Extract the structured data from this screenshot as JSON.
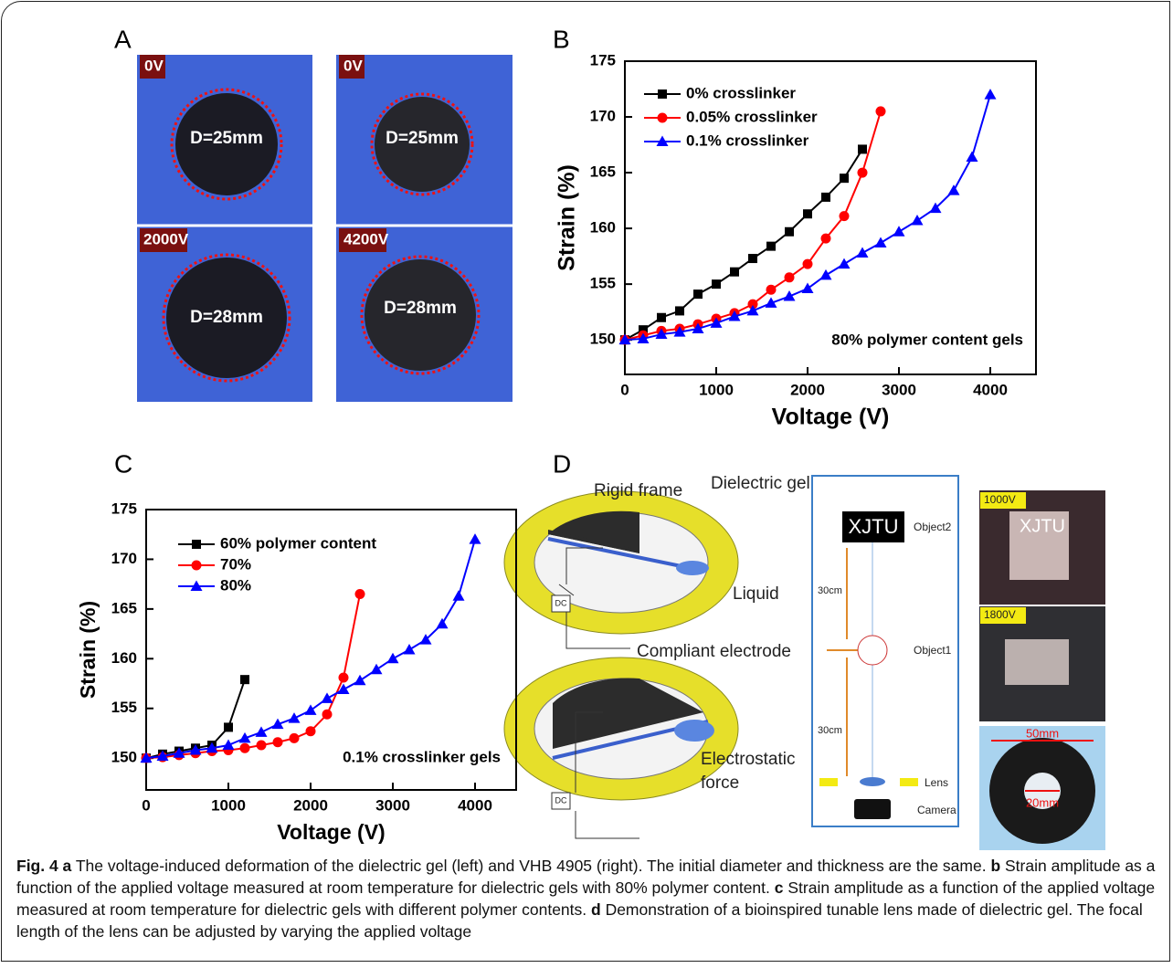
{
  "panel_labels": [
    "A",
    "B",
    "C",
    "D"
  ],
  "panel_a": {
    "labels": [
      "0V",
      "D=25mm",
      "2000V",
      "D=28mm",
      "0V",
      "D=25mm",
      "4200V",
      "D=28mm"
    ]
  },
  "chart_data": [
    {
      "type": "line",
      "x_label": "Voltage (V)",
      "y_label": "Strain (%)",
      "annotation": "80% polymer content gels",
      "xlim": [
        0,
        4500
      ],
      "ylim": [
        146.9,
        175
      ],
      "xticks": [
        0,
        1000,
        2000,
        3000,
        4000
      ],
      "yticks": [
        150,
        155,
        160,
        165,
        170,
        175
      ],
      "series": [
        {
          "name": "0% crosslinker",
          "color": "#000000",
          "marker": "square",
          "x": [
            0,
            200,
            400,
            600,
            800,
            1000,
            1200,
            1400,
            1600,
            1800,
            2000,
            2200,
            2400,
            2600
          ],
          "values": [
            150,
            150.9,
            152.0,
            152.6,
            154.1,
            155.0,
            156.1,
            157.3,
            158.4,
            159.7,
            161.3,
            162.8,
            164.5,
            167.1
          ]
        },
        {
          "name": "0.05% crosslinker",
          "color": "#ff0000",
          "marker": "circle",
          "x": [
            0,
            200,
            400,
            600,
            800,
            1000,
            1200,
            1400,
            1600,
            1800,
            2000,
            2200,
            2400,
            2600,
            2800
          ],
          "values": [
            150,
            150.4,
            150.8,
            151.0,
            151.4,
            151.9,
            152.4,
            153.2,
            154.5,
            155.6,
            156.8,
            159.1,
            161.1,
            165.0,
            170.5
          ]
        },
        {
          "name": "0.1% crosslinker",
          "color": "#0000ff",
          "marker": "triangle",
          "x": [
            0,
            200,
            400,
            600,
            800,
            1000,
            1200,
            1400,
            1600,
            1800,
            2000,
            2200,
            2400,
            2600,
            2800,
            3000,
            3200,
            3400,
            3600,
            3800,
            4000
          ],
          "values": [
            150,
            150.1,
            150.5,
            150.7,
            151.0,
            151.5,
            152.1,
            152.6,
            153.3,
            153.9,
            154.6,
            155.8,
            156.8,
            157.8,
            158.7,
            159.7,
            160.7,
            161.8,
            163.4,
            166.4,
            172.0
          ]
        }
      ]
    },
    {
      "type": "line",
      "x_label": "Voltage (V)",
      "y_label": "Strain (%)",
      "annotation": "0.1% crosslinker gels",
      "xlim": [
        0,
        4500
      ],
      "ylim": [
        146.8,
        175
      ],
      "xticks": [
        0,
        1000,
        2000,
        3000,
        4000
      ],
      "yticks": [
        150,
        155,
        160,
        165,
        170,
        175
      ],
      "series": [
        {
          "name": "60% polymer content",
          "color": "#000000",
          "marker": "square",
          "x": [
            0,
            200,
            400,
            600,
            800,
            1000,
            1200
          ],
          "values": [
            150,
            150.4,
            150.7,
            151.0,
            151.3,
            153.1,
            157.9
          ]
        },
        {
          "name": "70%",
          "color": "#ff0000",
          "marker": "circle",
          "x": [
            0,
            200,
            400,
            600,
            800,
            1000,
            1200,
            1400,
            1600,
            1800,
            2000,
            2200,
            2400,
            2600
          ],
          "values": [
            150,
            150.1,
            150.3,
            150.5,
            150.7,
            150.8,
            151.0,
            151.3,
            151.6,
            152.0,
            152.7,
            154.4,
            158.1,
            166.5
          ]
        },
        {
          "name": "80%",
          "color": "#0000ff",
          "marker": "triangle",
          "x": [
            0,
            200,
            400,
            600,
            800,
            1000,
            1200,
            1400,
            1600,
            1800,
            2000,
            2200,
            2400,
            2600,
            2800,
            3000,
            3200,
            3400,
            3600,
            3800,
            4000
          ],
          "values": [
            150,
            150.2,
            150.5,
            150.8,
            151.0,
            151.3,
            152.0,
            152.6,
            153.4,
            154.0,
            154.8,
            156.0,
            156.9,
            157.8,
            158.9,
            160.0,
            160.9,
            161.9,
            163.5,
            166.3,
            172.0
          ]
        }
      ]
    }
  ],
  "panel_d": {
    "labels": [
      "Rigid frame",
      "Dielectric gel",
      "Liquid",
      "Compliant electrode",
      "DC",
      "DC",
      "Electrostatic",
      "force",
      "XJTU",
      "Object2",
      "30cm",
      "Object1",
      "30cm",
      "Lens",
      "Camera",
      "1000V",
      "XJTU",
      "1800V",
      "50mm",
      "20mm"
    ]
  },
  "caption": [
    {
      "text": "Fig. 4 a",
      "bold": true
    },
    {
      "text": " The voltage-induced deformation of the dielectric gel (left) and VHB 4905 (right). The initial diameter and thickness are the same. ",
      "bold": false
    },
    {
      "text": "b",
      "bold": true
    },
    {
      "text": " Strain amplitude as a function of the applied voltage measured at room temperature for dielectric gels with 80% polymer content. ",
      "bold": false
    },
    {
      "text": "c",
      "bold": true
    },
    {
      "text": " Strain amplitude as a function of the applied voltage measured at room temperature for dielectric gels with different polymer contents. ",
      "bold": false
    },
    {
      "text": "d",
      "bold": true
    },
    {
      "text": " Demonstration of a bioinspired tunable lens made of dielectric gel. The focal length of the lens can be adjusted by varying the applied voltage",
      "bold": false
    }
  ]
}
